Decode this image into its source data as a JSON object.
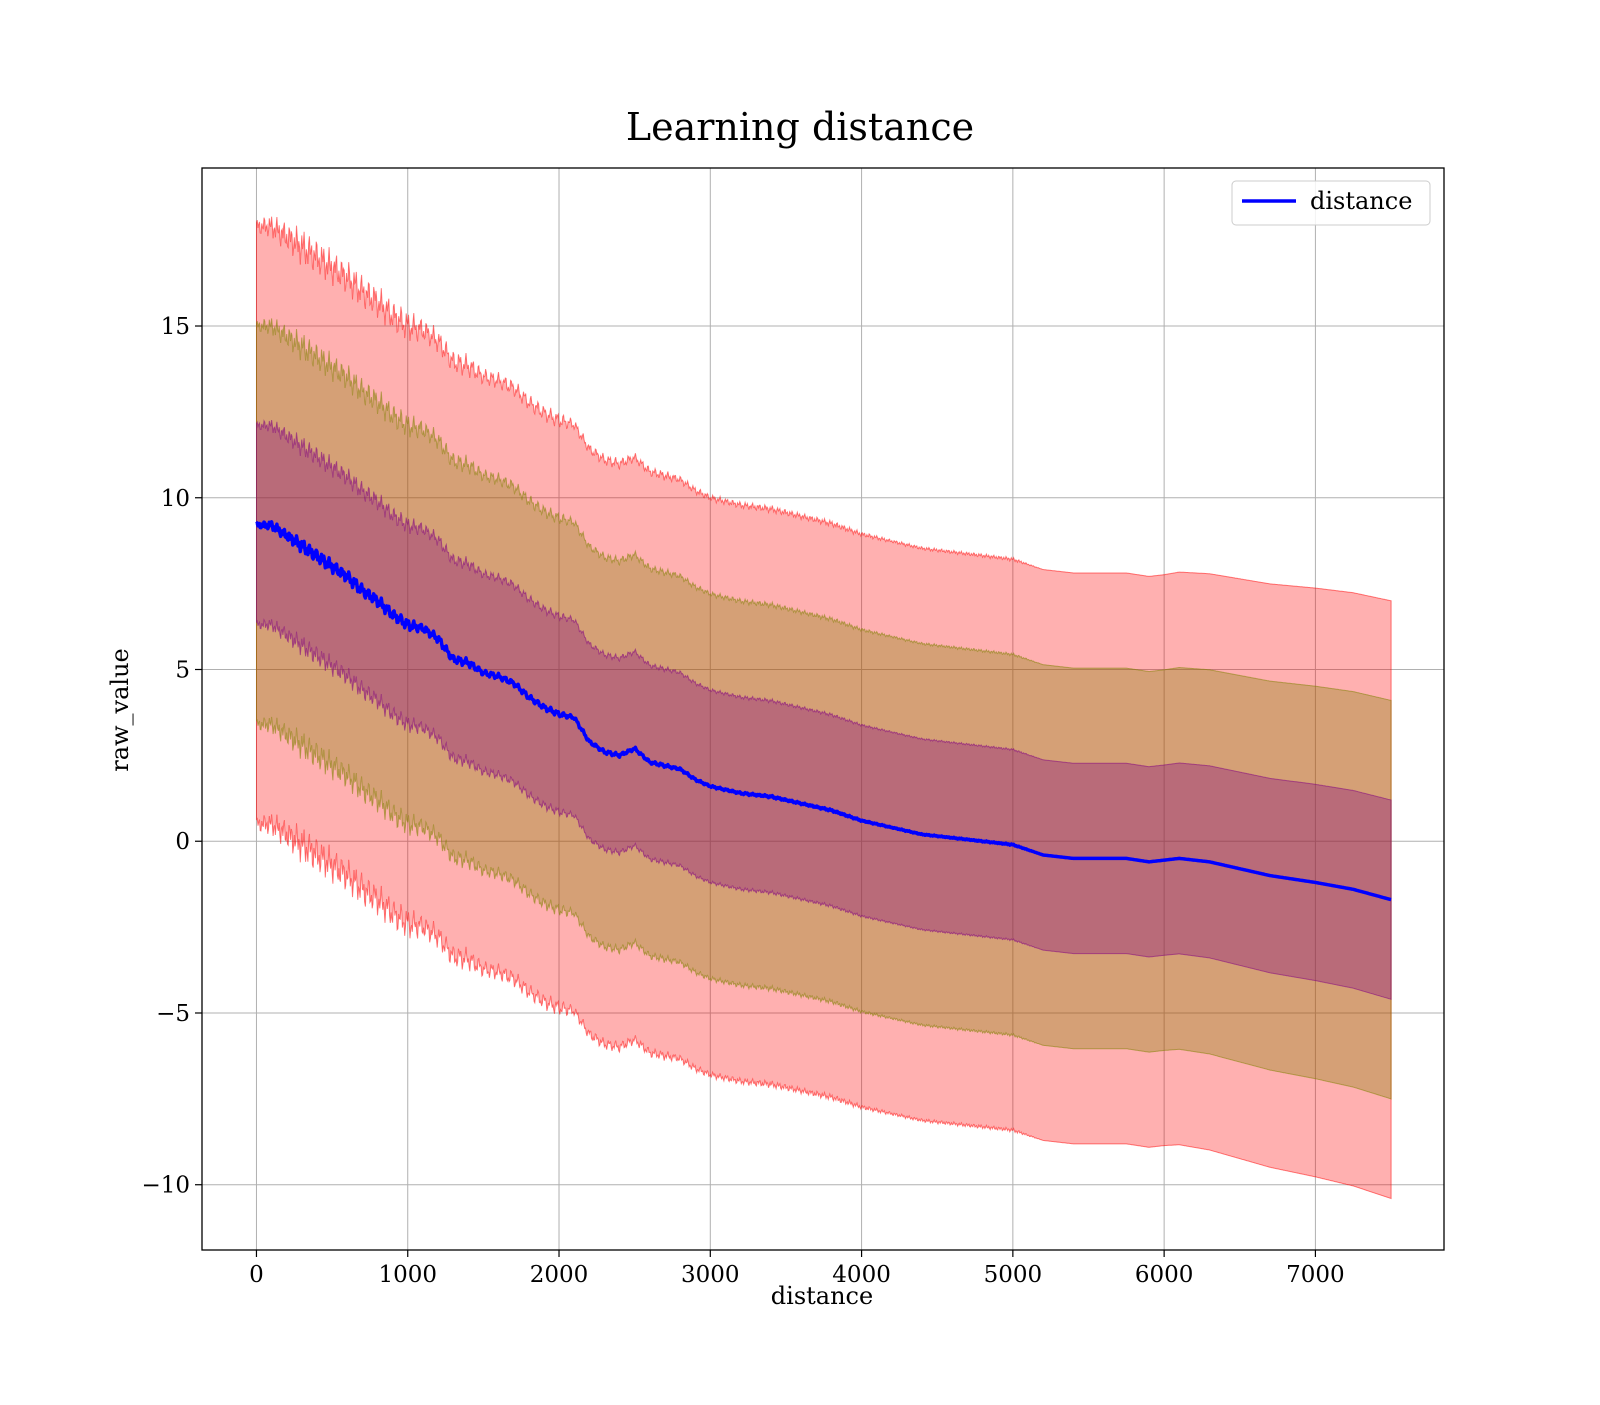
{
  "chart_data": {
    "type": "area",
    "title": "Learning distance",
    "xlabel": "distance",
    "ylabel": "raw_value",
    "xlim": [
      -360,
      7850
    ],
    "ylim": [
      -11.9,
      19.6
    ],
    "x_ticks": [
      0,
      1000,
      2000,
      3000,
      4000,
      5000,
      6000,
      7000
    ],
    "x_tick_labels": [
      "0",
      "1000",
      "2000",
      "3000",
      "4000",
      "5000",
      "6000",
      "7000"
    ],
    "y_ticks": [
      -10,
      -5,
      0,
      5,
      10,
      15
    ],
    "y_tick_labels": [
      "−10",
      "−5",
      "0",
      "5",
      "10",
      "15"
    ],
    "grid": true,
    "legend": {
      "position": "upper-right",
      "entries": [
        "distance"
      ]
    },
    "series": [
      {
        "name": "distance",
        "color": "#0000ff",
        "x": [
          0,
          100,
          200,
          300,
          400,
          500,
          600,
          700,
          800,
          900,
          1000,
          1100,
          1200,
          1300,
          1400,
          1500,
          1600,
          1700,
          1800,
          1900,
          2000,
          2100,
          2200,
          2300,
          2400,
          2500,
          2600,
          2700,
          2800,
          2900,
          3000,
          3200,
          3400,
          3600,
          3800,
          4000,
          4200,
          4400,
          4600,
          4800,
          5000,
          5200,
          5400,
          5600,
          5750,
          5900,
          6100,
          6300,
          6500,
          6700,
          7000,
          7250,
          7500
        ],
        "y": [
          9.2,
          9.2,
          8.9,
          8.6,
          8.3,
          8.0,
          7.7,
          7.3,
          7.0,
          6.6,
          6.3,
          6.2,
          5.9,
          5.3,
          5.2,
          4.9,
          4.8,
          4.6,
          4.2,
          3.9,
          3.7,
          3.6,
          2.9,
          2.6,
          2.5,
          2.7,
          2.3,
          2.2,
          2.1,
          1.8,
          1.6,
          1.4,
          1.3,
          1.1,
          0.9,
          0.6,
          0.4,
          0.2,
          0.1,
          0.0,
          -0.1,
          -0.4,
          -0.5,
          -0.5,
          -0.5,
          -0.6,
          -0.5,
          -0.6,
          -0.8,
          -1.0,
          -1.2,
          -1.4,
          -1.7
        ],
        "noise": [
          0.1,
          0.15,
          0.2,
          0.25,
          0.25,
          0.25,
          0.25,
          0.25,
          0.25,
          0.25,
          0.25,
          0.2,
          0.2,
          0.2,
          0.2,
          0.15,
          0.15,
          0.15,
          0.15,
          0.15,
          0.15,
          0.1,
          0.1,
          0.1,
          0.1,
          0.08,
          0.08,
          0.08,
          0.06,
          0.06,
          0.05,
          0.05,
          0.05,
          0.04,
          0.04,
          0.03,
          0.02,
          0.02,
          0.02,
          0.02,
          0.02,
          0,
          0,
          0,
          0,
          0,
          0,
          0,
          0,
          0,
          0,
          0,
          0
        ]
      }
    ],
    "bands": [
      {
        "sigma": 3,
        "color": "#ff0000",
        "opacity": 0.31
      },
      {
        "sigma": 2,
        "color": "#808000",
        "opacity": 0.33
      },
      {
        "sigma": 1,
        "color": "#800080",
        "opacity": 0.33
      }
    ],
    "band_width": {
      "x": [
        0,
        1000,
        2000,
        3000,
        4000,
        5000,
        6000,
        7500
      ],
      "sigma": [
        2.9,
        2.9,
        2.85,
        2.8,
        2.78,
        2.77,
        2.77,
        2.9
      ]
    }
  }
}
